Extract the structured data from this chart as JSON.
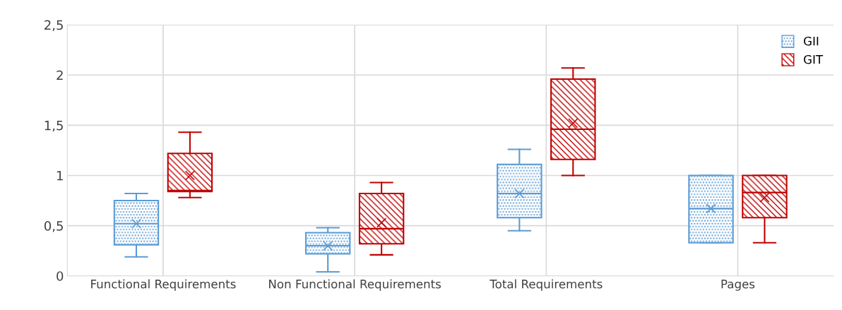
{
  "chart_data": {
    "type": "box",
    "categories": [
      "Functional Requirements",
      "Non Functional Requirements",
      "Total Requirements",
      "Pages"
    ],
    "series": [
      {
        "name": "GII",
        "color": "#5b9bd5",
        "boxes": [
          {
            "low": 0.19,
            "q1": 0.31,
            "median": 0.52,
            "q3": 0.75,
            "high": 0.82,
            "mean": 0.52
          },
          {
            "low": 0.04,
            "q1": 0.22,
            "median": 0.3,
            "q3": 0.43,
            "high": 0.48,
            "mean": 0.3
          },
          {
            "low": 0.45,
            "q1": 0.58,
            "median": 0.82,
            "q3": 1.11,
            "high": 1.26,
            "mean": 0.82
          },
          {
            "low": 0.33,
            "q1": 0.33,
            "median": 0.67,
            "q3": 1.0,
            "high": 1.0,
            "mean": 0.67
          }
        ]
      },
      {
        "name": "GIT",
        "color": "#c00000",
        "boxes": [
          {
            "low": 0.78,
            "q1": 0.84,
            "median": 0.85,
            "q3": 1.22,
            "high": 1.43,
            "mean": 1.0
          },
          {
            "low": 0.21,
            "q1": 0.32,
            "median": 0.47,
            "q3": 0.82,
            "high": 0.93,
            "mean": 0.53
          },
          {
            "low": 1.0,
            "q1": 1.16,
            "median": 1.46,
            "q3": 1.96,
            "high": 2.07,
            "mean": 1.52
          },
          {
            "low": 0.33,
            "q1": 0.58,
            "median": 0.83,
            "q3": 1.0,
            "high": 1.0,
            "mean": 0.78
          }
        ]
      }
    ],
    "ylim": [
      0,
      2.5
    ],
    "yticks": [
      0,
      {
        "value": 0.5,
        "label": "0,5"
      },
      1,
      {
        "value": 1.5,
        "label": "1,5"
      },
      2,
      {
        "value": 2.5,
        "label": "2,5"
      }
    ],
    "grid": true,
    "legend": "top right"
  }
}
